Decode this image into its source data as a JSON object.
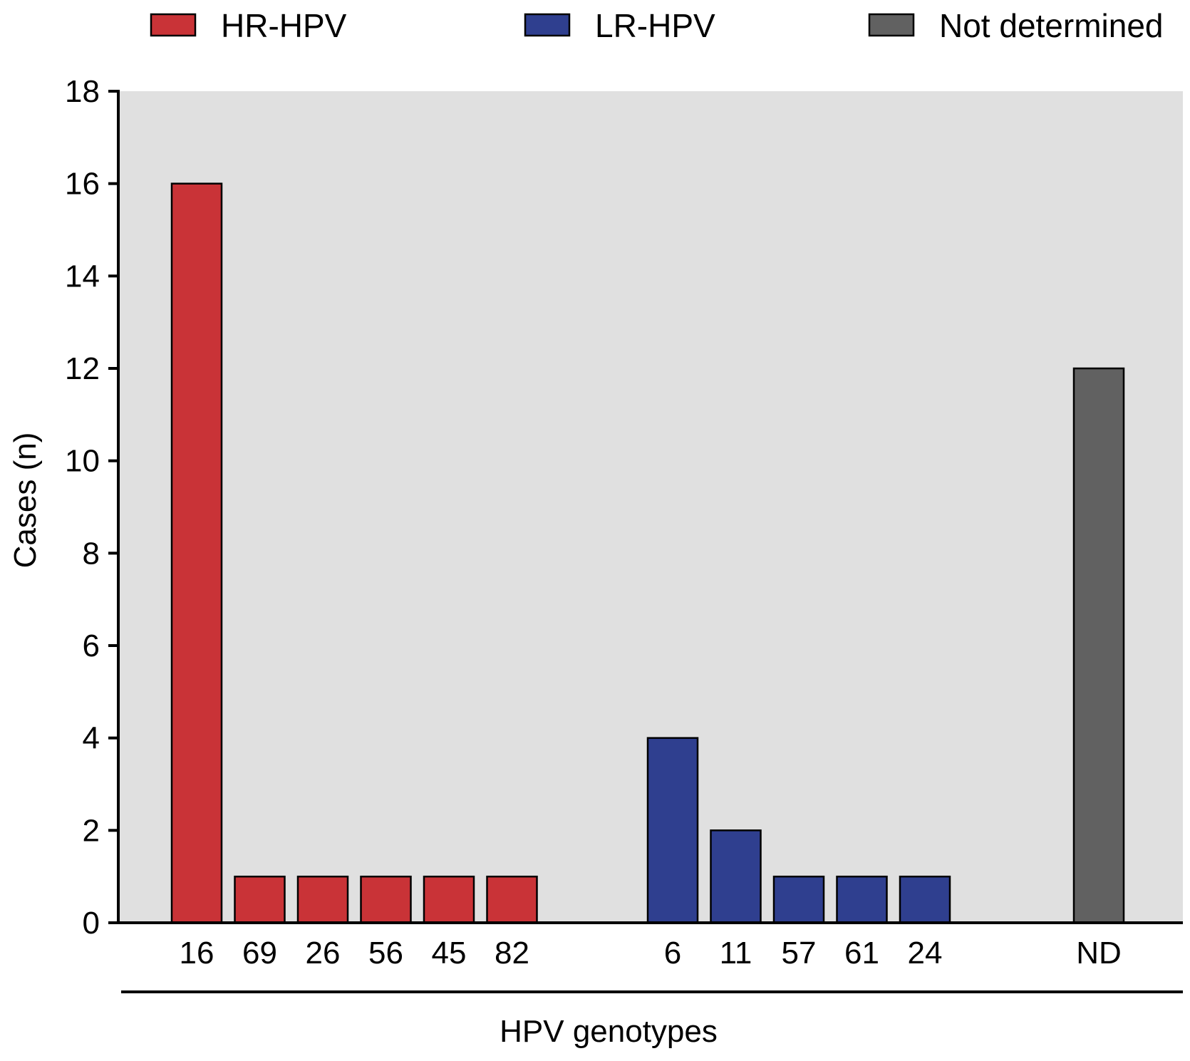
{
  "chart_data": {
    "type": "bar",
    "title": "",
    "xlabel": "HPV genotypes",
    "ylabel": "Cases (n)",
    "ylim": [
      0,
      18
    ],
    "yticks": [
      0,
      2,
      4,
      6,
      8,
      10,
      12,
      14,
      16,
      18
    ],
    "legend": [
      {
        "name": "HR-HPV",
        "color": "#c93337"
      },
      {
        "name": "LR-HPV",
        "color": "#2f3f8f"
      },
      {
        "name": "Not determined",
        "color": "#616161"
      }
    ],
    "groups": [
      {
        "name": "HR-HPV",
        "color": "#c93337",
        "categories": [
          "16",
          "69",
          "26",
          "56",
          "45",
          "82"
        ],
        "values": [
          16,
          1,
          1,
          1,
          1,
          1
        ]
      },
      {
        "name": "LR-HPV",
        "color": "#2f3f8f",
        "categories": [
          "6",
          "11",
          "57",
          "61",
          "24"
        ],
        "values": [
          4,
          2,
          1,
          1,
          1
        ]
      },
      {
        "name": "Not determined",
        "color": "#616161",
        "categories": [
          "ND"
        ],
        "values": [
          12
        ]
      }
    ],
    "plot_background": "#e0e0e0"
  }
}
